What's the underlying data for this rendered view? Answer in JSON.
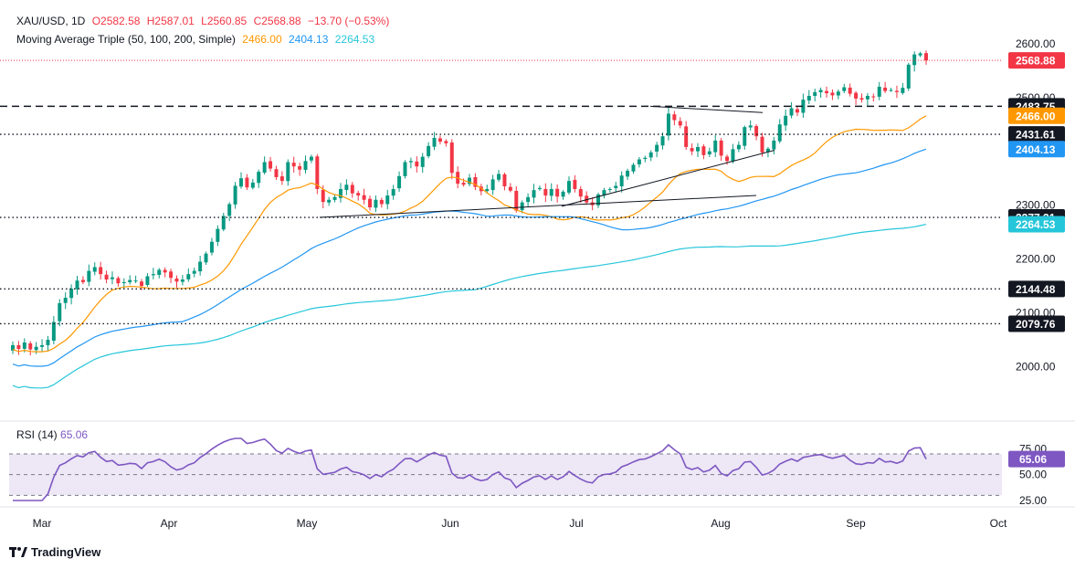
{
  "header": {
    "symbol": "XAU/USD, 1D",
    "open": "O2582.58",
    "high": "H2587.01",
    "low": "L2560.85",
    "close": "C2568.88",
    "change": "−13.70 (−0.53%)",
    "ma_label": "Moving Average Triple (50, 100, 200, Simple)",
    "ma50_value": "2466.00",
    "ma100_value": "2404.13",
    "ma200_value": "2264.53"
  },
  "rsi_header": {
    "label": "RSI (14)",
    "value": "65.06"
  },
  "brand": {
    "name": "TradingView"
  },
  "colors": {
    "up": "#089981",
    "down": "#f23645",
    "ma50": "#ff9800",
    "ma100": "#2196f3",
    "ma200": "#26c6da",
    "rsi": "#7e57c2",
    "rsi_band": "#ede7f6",
    "price_line": "#f23645"
  },
  "chart_data": [
    {
      "type": "candlestick",
      "title": "XAU/USD, 1D",
      "y_axis_ticks": [
        2000,
        2100,
        2200,
        2300,
        2400,
        2500,
        2600
      ],
      "ylim": [
        1950,
        2625
      ],
      "x_axis_ticks": [
        "Mar",
        "Apr",
        "May",
        "Jun",
        "Jul",
        "Aug",
        "Sep",
        "Oct"
      ],
      "price_labels": [
        {
          "text": "2568.88",
          "value": 2568.88,
          "kind": "last"
        },
        {
          "text": "2483.75",
          "value": 2483.75,
          "kind": "level"
        },
        {
          "text": "2466.00",
          "value": 2466.0,
          "kind": "ma50"
        },
        {
          "text": "2431.61",
          "value": 2431.61,
          "kind": "level"
        },
        {
          "text": "2404.13",
          "value": 2404.13,
          "kind": "ma100"
        },
        {
          "text": "2277.31",
          "value": 2277.31,
          "kind": "level"
        },
        {
          "text": "2264.53",
          "value": 2264.53,
          "kind": "ma200"
        },
        {
          "text": "2144.48",
          "value": 2144.48,
          "kind": "level"
        },
        {
          "text": "2079.76",
          "value": 2079.76,
          "kind": "level"
        }
      ],
      "horizontal_levels": [
        {
          "value": 2483.75,
          "style": "dashed"
        },
        {
          "value": 2431.61,
          "style": "dotted"
        },
        {
          "value": 2277.31,
          "style": "dotted"
        },
        {
          "value": 2144.48,
          "style": "dotted"
        },
        {
          "value": 2079.76,
          "style": "dotted"
        }
      ],
      "closes": [
        2040,
        2033,
        2045,
        2032,
        2037,
        2040,
        2050,
        2083,
        2118,
        2128,
        2145,
        2160,
        2157,
        2178,
        2185,
        2172,
        2162,
        2166,
        2155,
        2157,
        2161,
        2160,
        2150,
        2168,
        2172,
        2180,
        2175,
        2165,
        2158,
        2162,
        2172,
        2178,
        2195,
        2210,
        2232,
        2256,
        2280,
        2302,
        2336,
        2350,
        2333,
        2342,
        2362,
        2380,
        2368,
        2352,
        2345,
        2380,
        2372,
        2366,
        2382,
        2390,
        2330,
        2306,
        2310,
        2315,
        2330,
        2338,
        2322,
        2318,
        2310,
        2296,
        2310,
        2302,
        2318,
        2330,
        2354,
        2380,
        2382,
        2372,
        2390,
        2410,
        2425,
        2418,
        2415,
        2360,
        2340,
        2338,
        2351,
        2334,
        2326,
        2330,
        2348,
        2358,
        2335,
        2327,
        2290,
        2305,
        2315,
        2328,
        2332,
        2318,
        2330,
        2316,
        2325,
        2345,
        2330,
        2316,
        2305,
        2300,
        2320,
        2328,
        2330,
        2336,
        2355,
        2364,
        2375,
        2385,
        2388,
        2398,
        2412,
        2428,
        2470,
        2458,
        2448,
        2408,
        2400,
        2408,
        2393,
        2400,
        2420,
        2392,
        2382,
        2404,
        2412,
        2445,
        2448,
        2428,
        2398,
        2405,
        2420,
        2450,
        2466,
        2480,
        2472,
        2496,
        2503,
        2510,
        2514,
        2508,
        2504,
        2511,
        2519,
        2507,
        2498,
        2496,
        2503,
        2502,
        2520,
        2512,
        2514,
        2510,
        2518,
        2561,
        2580,
        2582,
        2568.88
      ],
      "ma50_label": "2466.00",
      "ma100_label": "2404.13",
      "ma200_label": "2264.53"
    },
    {
      "type": "line",
      "title": "RSI (14)",
      "y_axis_ticks": [
        25,
        50,
        75
      ],
      "band": [
        30,
        70
      ],
      "ylim": [
        25,
        75
      ],
      "last_value": 65.06,
      "last_label": "65.06"
    }
  ]
}
